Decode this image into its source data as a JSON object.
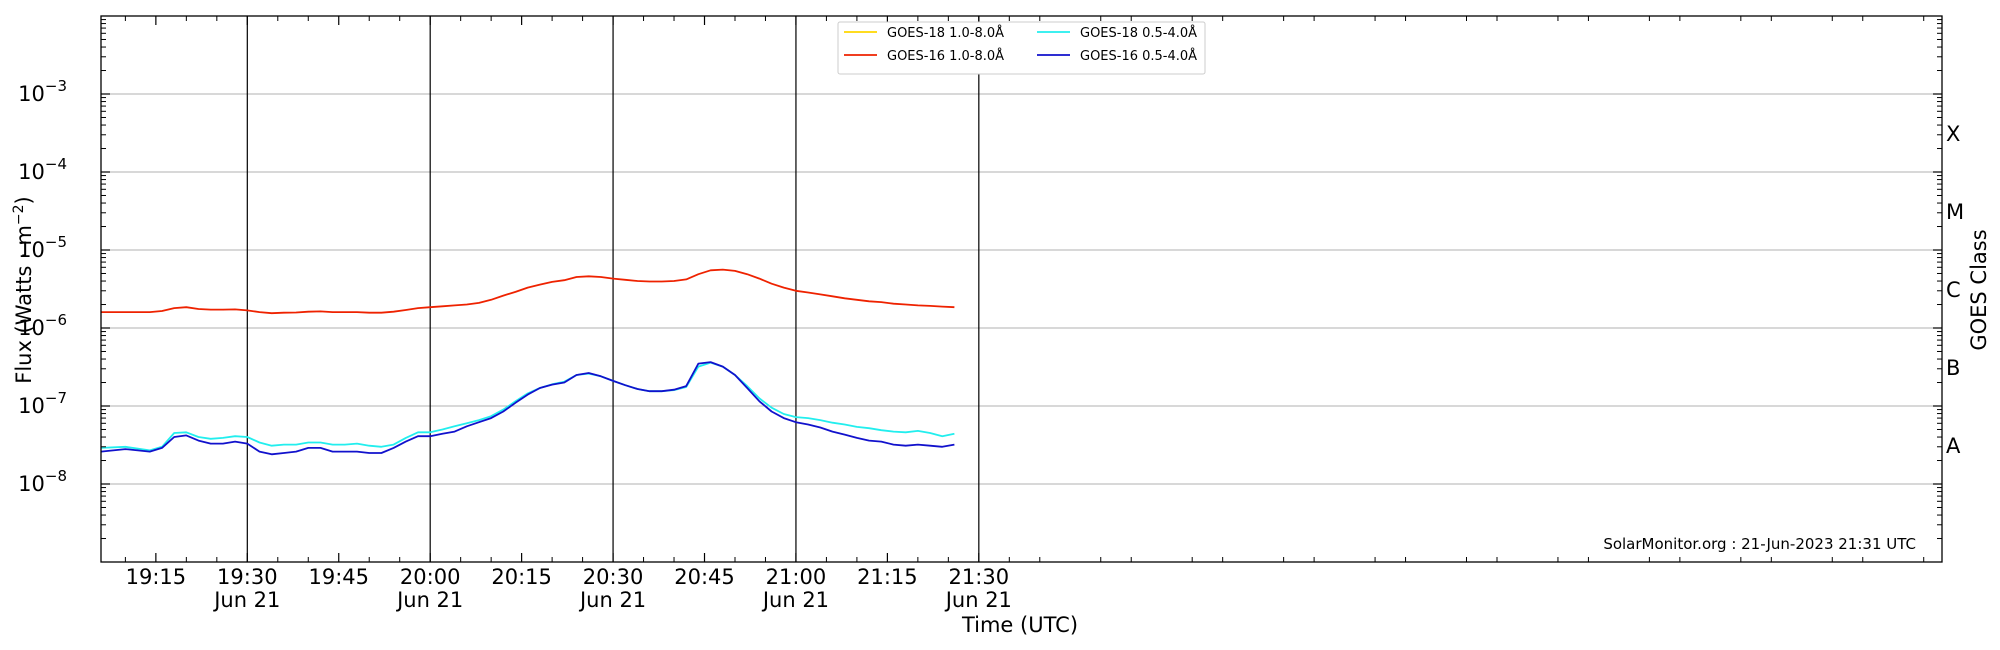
{
  "chart_data": {
    "type": "line",
    "title": "",
    "xlabel": "Time (UTC)",
    "ylabel_main": "Flux (Watts · m",
    "ylabel_exp": "−2",
    "ylabel_close": ")",
    "y2label": "GOES Class",
    "y_scale": "log",
    "ylim": [
      1e-09,
      0.01
    ],
    "x_range_minutes": [
      1146,
      1448
    ],
    "grid": "horizontal",
    "legend_position": "top-center",
    "credit": "SolarMonitor.org : 21-Jun-2023 21:31 UTC",
    "y_ticks": [
      {
        "exp": -8,
        "base": "10",
        "sup": "−8"
      },
      {
        "exp": -7,
        "base": "10",
        "sup": "−7"
      },
      {
        "exp": -6,
        "base": "10",
        "sup": "−6"
      },
      {
        "exp": -5,
        "base": "10",
        "sup": "−5"
      },
      {
        "exp": -4,
        "base": "10",
        "sup": "−4"
      },
      {
        "exp": -3,
        "base": "10",
        "sup": "−3"
      }
    ],
    "x_ticks": [
      {
        "t": 1155,
        "time": "19:15",
        "date": ""
      },
      {
        "t": 1170,
        "time": "19:30",
        "date": "Jun 21"
      },
      {
        "t": 1185,
        "time": "19:45",
        "date": ""
      },
      {
        "t": 1200,
        "time": "20:00",
        "date": "Jun 21"
      },
      {
        "t": 1215,
        "time": "20:15",
        "date": ""
      },
      {
        "t": 1230,
        "time": "20:30",
        "date": "Jun 21"
      },
      {
        "t": 1245,
        "time": "20:45",
        "date": ""
      },
      {
        "t": 1260,
        "time": "21:00",
        "date": "Jun 21"
      },
      {
        "t": 1275,
        "time": "21:15",
        "date": ""
      },
      {
        "t": 1290,
        "time": "21:30",
        "date": "Jun 21"
      }
    ],
    "vertical_lines": [
      1170,
      1200,
      1230,
      1260,
      1290
    ],
    "goes_classes": [
      {
        "label": "A",
        "exp": -7.5
      },
      {
        "label": "B",
        "exp": -6.5
      },
      {
        "label": "C",
        "exp": -5.5
      },
      {
        "label": "M",
        "exp": -4.5
      },
      {
        "label": "X",
        "exp": -3.5
      }
    ],
    "series": [
      {
        "name": "GOES-18 1.0-8.0Å",
        "color": "#ffd700",
        "x": [],
        "y": []
      },
      {
        "name": "GOES-16 1.0-8.0Å",
        "color": "#ee2200",
        "x": [
          1146,
          1150,
          1154,
          1156,
          1158,
          1160,
          1162,
          1164,
          1166,
          1168,
          1170,
          1172,
          1174,
          1176,
          1178,
          1180,
          1182,
          1184,
          1186,
          1188,
          1190,
          1192,
          1194,
          1196,
          1198,
          1200,
          1202,
          1204,
          1206,
          1208,
          1210,
          1212,
          1214,
          1216,
          1218,
          1220,
          1222,
          1224,
          1226,
          1228,
          1230,
          1232,
          1234,
          1236,
          1238,
          1240,
          1242,
          1244,
          1246,
          1248,
          1250,
          1252,
          1254,
          1256,
          1258,
          1260,
          1262,
          1264,
          1266,
          1268,
          1270,
          1272,
          1274,
          1276,
          1278,
          1280,
          1282,
          1284,
          1286
        ],
        "y": [
          1.6e-06,
          1.6e-06,
          1.6e-06,
          1.65e-06,
          1.8e-06,
          1.85e-06,
          1.75e-06,
          1.72e-06,
          1.72e-06,
          1.73e-06,
          1.68e-06,
          1.6e-06,
          1.55e-06,
          1.57e-06,
          1.58e-06,
          1.62e-06,
          1.63e-06,
          1.6e-06,
          1.6e-06,
          1.6e-06,
          1.57e-06,
          1.57e-06,
          1.62e-06,
          1.7e-06,
          1.8e-06,
          1.85e-06,
          1.9e-06,
          1.95e-06,
          2e-06,
          2.1e-06,
          2.3e-06,
          2.6e-06,
          2.9e-06,
          3.3e-06,
          3.6e-06,
          3.9e-06,
          4.1e-06,
          4.5e-06,
          4.6e-06,
          4.5e-06,
          4.3e-06,
          4.15e-06,
          4e-06,
          3.95e-06,
          3.95e-06,
          4e-06,
          4.2e-06,
          4.9e-06,
          5.5e-06,
          5.6e-06,
          5.4e-06,
          4.9e-06,
          4.3e-06,
          3.7e-06,
          3.3e-06,
          3e-06,
          2.85e-06,
          2.7e-06,
          2.55e-06,
          2.4e-06,
          2.3e-06,
          2.2e-06,
          2.15e-06,
          2.05e-06,
          2e-06,
          1.95e-06,
          1.92e-06,
          1.88e-06,
          1.85e-06
        ]
      },
      {
        "name": "GOES-18 0.5-4.0Å",
        "color": "#22eeee",
        "x": [
          1146,
          1150,
          1154,
          1156,
          1158,
          1160,
          1162,
          1164,
          1166,
          1168,
          1170,
          1172,
          1174,
          1176,
          1178,
          1180,
          1182,
          1184,
          1186,
          1188,
          1190,
          1192,
          1194,
          1196,
          1198,
          1200,
          1202,
          1204,
          1206,
          1208,
          1210,
          1212,
          1214,
          1216,
          1218,
          1220,
          1222,
          1224,
          1226,
          1228,
          1230,
          1232,
          1234,
          1236,
          1238,
          1240,
          1242,
          1244,
          1246,
          1248,
          1250,
          1252,
          1254,
          1256,
          1258,
          1260,
          1262,
          1264,
          1266,
          1268,
          1270,
          1272,
          1274,
          1276,
          1278,
          1280,
          1282,
          1284,
          1286
        ],
        "y": [
          2.9e-08,
          3e-08,
          2.7e-08,
          3e-08,
          4.5e-08,
          4.6e-08,
          4e-08,
          3.8e-08,
          3.9e-08,
          4.1e-08,
          4e-08,
          3.4e-08,
          3.1e-08,
          3.2e-08,
          3.2e-08,
          3.4e-08,
          3.4e-08,
          3.2e-08,
          3.2e-08,
          3.3e-08,
          3.1e-08,
          3e-08,
          3.2e-08,
          3.9e-08,
          4.6e-08,
          4.6e-08,
          5e-08,
          5.5e-08,
          6e-08,
          6.6e-08,
          7.4e-08,
          9e-08,
          1.15e-07,
          1.45e-07,
          1.7e-07,
          1.9e-07,
          2.05e-07,
          2.5e-07,
          2.6e-07,
          2.4e-07,
          2.1e-07,
          1.85e-07,
          1.65e-07,
          1.55e-07,
          1.55e-07,
          1.6e-07,
          1.75e-07,
          3.2e-07,
          3.6e-07,
          3.2e-07,
          2.5e-07,
          1.8e-07,
          1.25e-07,
          9.5e-08,
          7.9e-08,
          7.2e-08,
          7e-08,
          6.6e-08,
          6.1e-08,
          5.8e-08,
          5.4e-08,
          5.2e-08,
          4.9e-08,
          4.7e-08,
          4.6e-08,
          4.8e-08,
          4.5e-08,
          4.1e-08,
          4.4e-08
        ]
      },
      {
        "name": "GOES-16 0.5-4.0Å",
        "color": "#1111cc",
        "x": [
          1146,
          1150,
          1154,
          1156,
          1158,
          1160,
          1162,
          1164,
          1166,
          1168,
          1170,
          1172,
          1174,
          1176,
          1178,
          1180,
          1182,
          1184,
          1186,
          1188,
          1190,
          1192,
          1194,
          1196,
          1198,
          1200,
          1202,
          1204,
          1206,
          1208,
          1210,
          1212,
          1214,
          1216,
          1218,
          1220,
          1222,
          1224,
          1226,
          1228,
          1230,
          1232,
          1234,
          1236,
          1238,
          1240,
          1242,
          1244,
          1246,
          1248,
          1250,
          1252,
          1254,
          1256,
          1258,
          1260,
          1262,
          1264,
          1266,
          1268,
          1270,
          1272,
          1274,
          1276,
          1278,
          1280,
          1282,
          1284,
          1286
        ],
        "y": [
          2.6e-08,
          2.8e-08,
          2.6e-08,
          2.9e-08,
          4e-08,
          4.2e-08,
          3.6e-08,
          3.3e-08,
          3.3e-08,
          3.5e-08,
          3.3e-08,
          2.6e-08,
          2.4e-08,
          2.5e-08,
          2.6e-08,
          2.9e-08,
          2.9e-08,
          2.6e-08,
          2.6e-08,
          2.6e-08,
          2.5e-08,
          2.5e-08,
          2.9e-08,
          3.5e-08,
          4.1e-08,
          4.1e-08,
          4.4e-08,
          4.7e-08,
          5.5e-08,
          6.2e-08,
          7e-08,
          8.5e-08,
          1.1e-07,
          1.4e-07,
          1.7e-07,
          1.88e-07,
          2e-07,
          2.5e-07,
          2.65e-07,
          2.4e-07,
          2.1e-07,
          1.85e-07,
          1.65e-07,
          1.55e-07,
          1.55e-07,
          1.62e-07,
          1.8e-07,
          3.5e-07,
          3.65e-07,
          3.2e-07,
          2.5e-07,
          1.7e-07,
          1.15e-07,
          8.5e-08,
          7e-08,
          6.2e-08,
          5.8e-08,
          5.3e-08,
          4.7e-08,
          4.3e-08,
          3.9e-08,
          3.6e-08,
          3.5e-08,
          3.2e-08,
          3.1e-08,
          3.2e-08,
          3.1e-08,
          3e-08,
          3.2e-08
        ]
      }
    ]
  }
}
